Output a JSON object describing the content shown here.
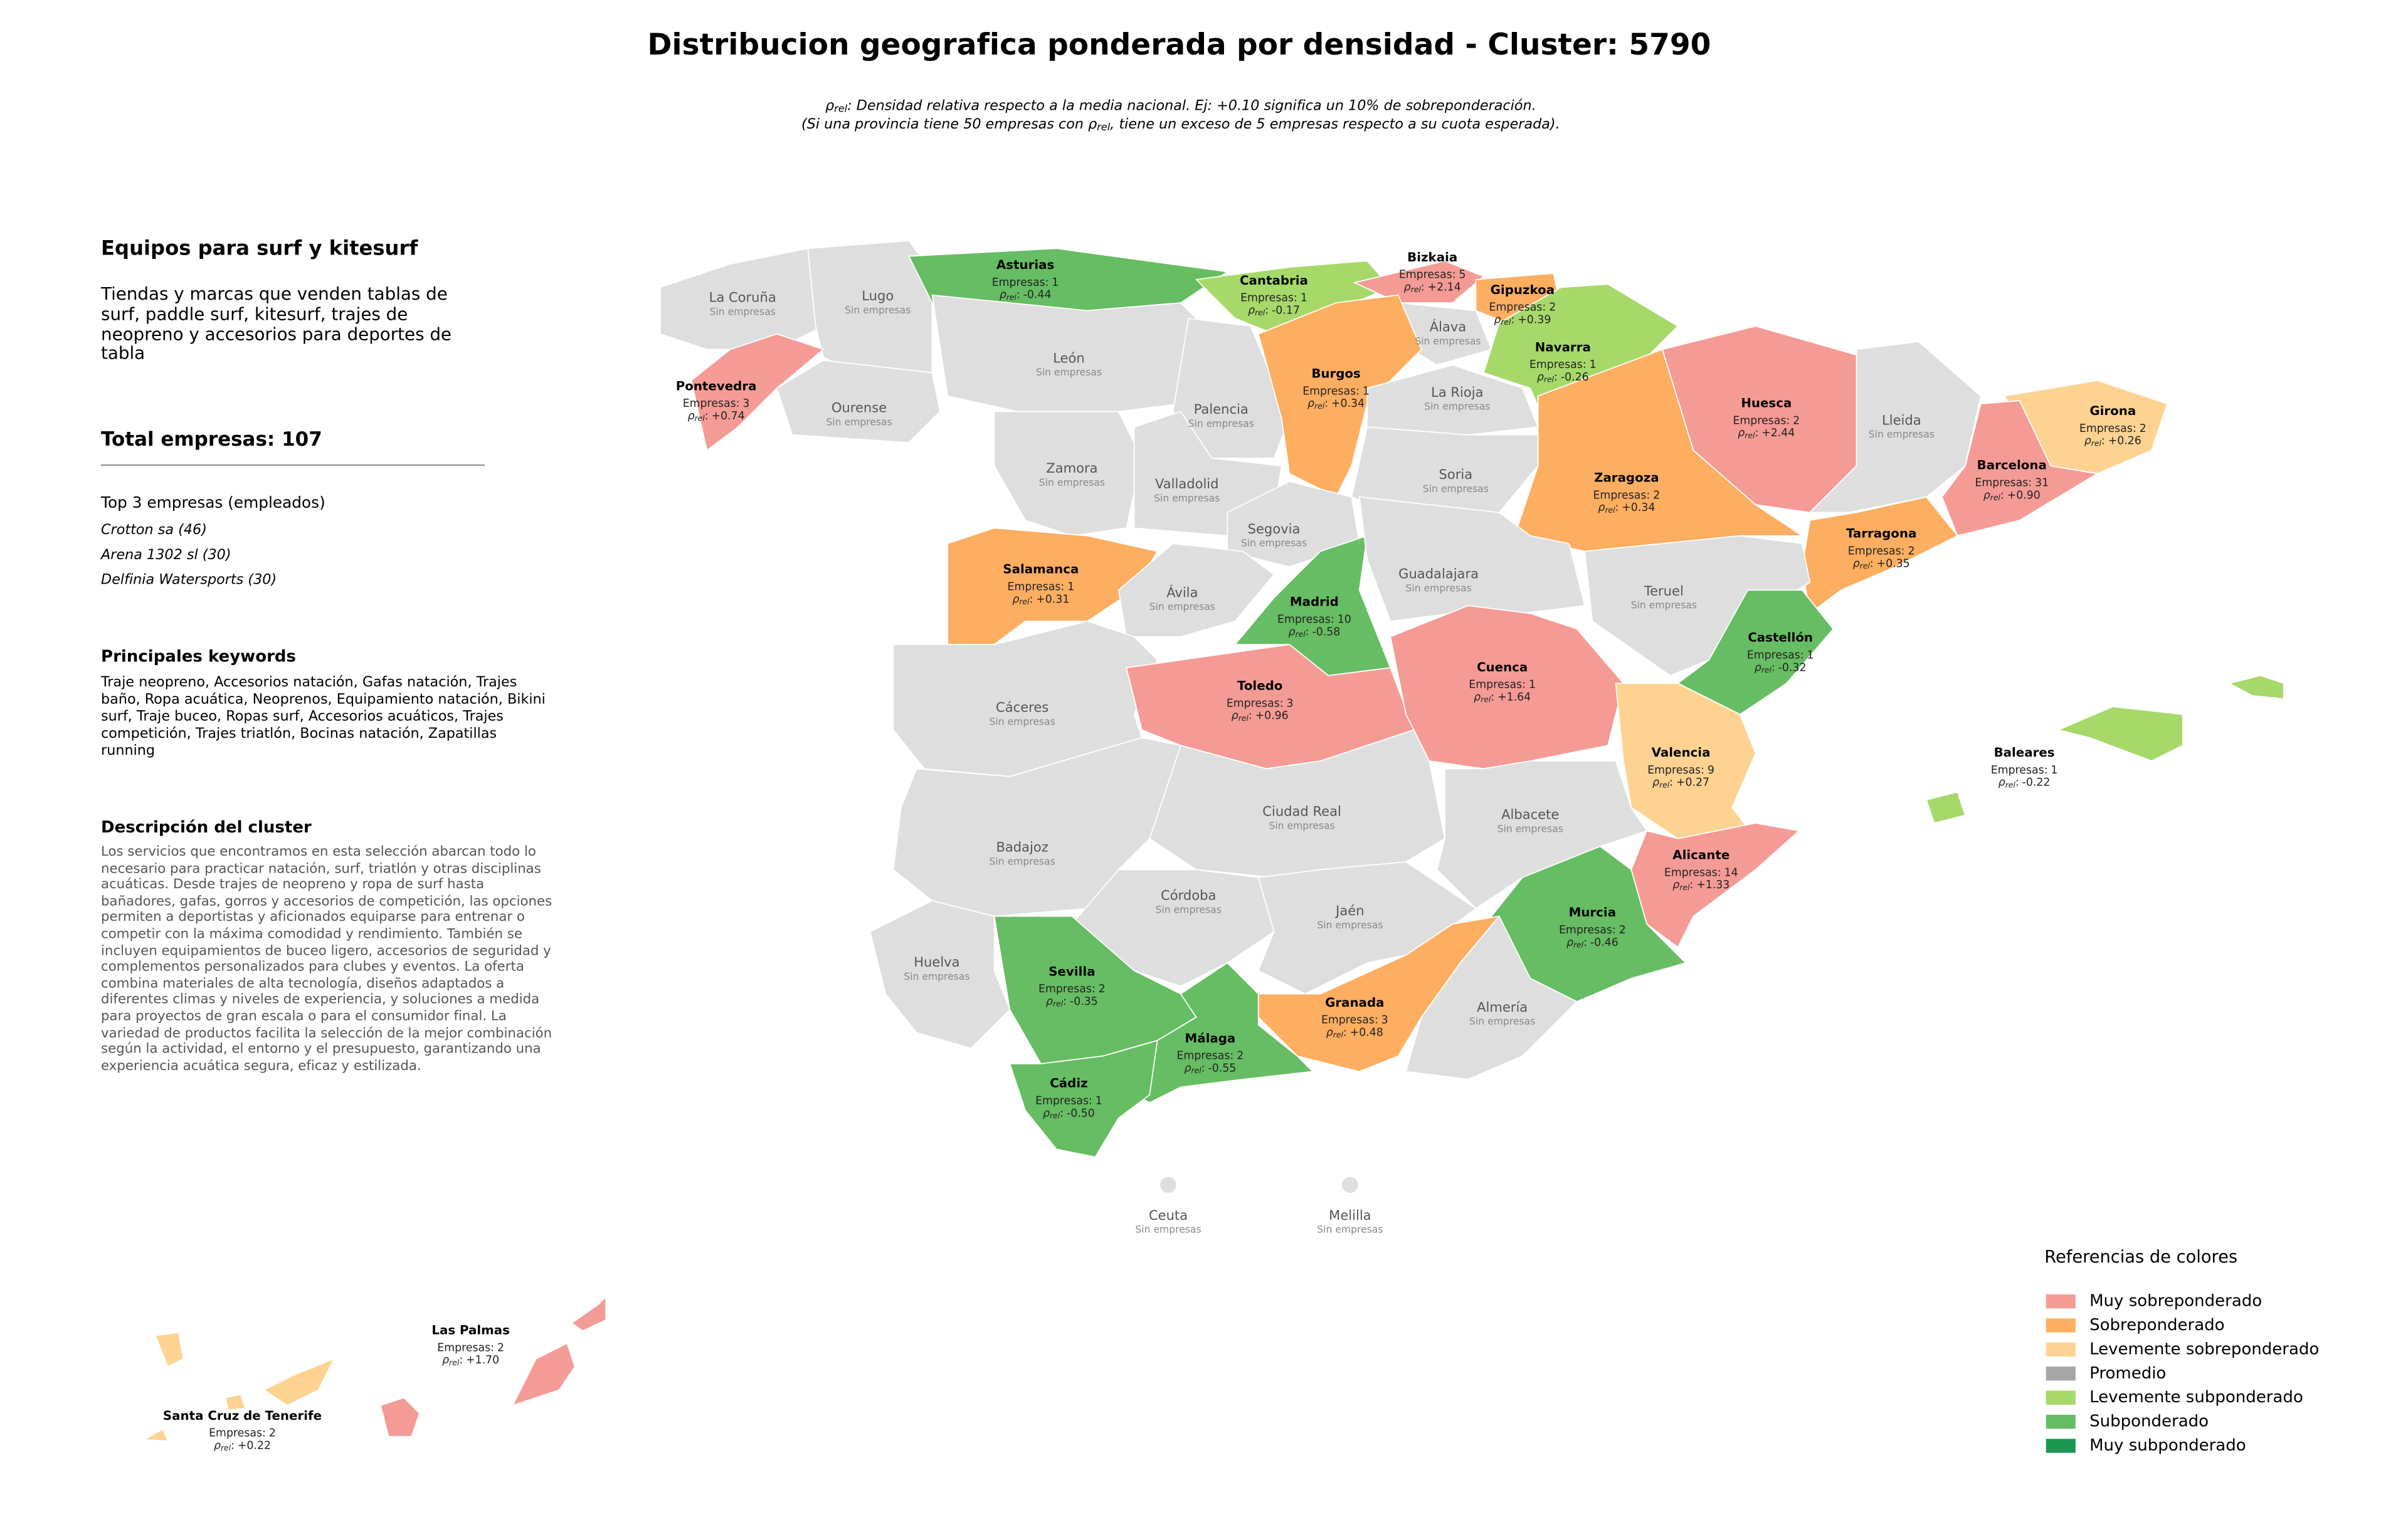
{
  "title": "Distribucion geografica ponderada por densidad - Cluster: 5790",
  "subtitle_lines": [
    [
      "ρ",
      "rel",
      ": Densidad relativa respecto a la media nacional. Ej: +0.10 significa un 10% de sobreponderación."
    ],
    [
      "(Si una provincia tiene 50 empresas con ",
      "ρ",
      "rel",
      ", tiene un exceso de 5 empresas respecto a su cuota esperada)."
    ]
  ],
  "panel": {
    "title": "Equipos para surf y kitesurf",
    "description": "Tiendas y marcas que venden tablas de surf, paddle surf, kitesurf, trajes de neopreno y accesorios para deportes de tabla",
    "total_label": "Total empresas:",
    "total": 107,
    "top_title": "Top 3 empresas (empleados)",
    "top_companies": [
      "Crotton sa (46)",
      "Arena 1302 sl (30)",
      "Delfinia Watersports (30)"
    ],
    "keywords_title": "Principales keywords",
    "keywords": "Traje neopreno, Accesorios natación, Gafas natación, Trajes baño, Ropa acuática, Neoprenos, Equipamiento natación, Bikini surf, Traje buceo, Ropas surf, Accesorios acuáticos, Trajes competición, Trajes triatlón, Bocinas natación, Zapatillas running",
    "cluster_title": "Descripción del cluster",
    "cluster_description": "Los servicios que encontramos en esta selección abarcan todo lo necesario para practicar natación, surf, triatlón y otras disciplinas acuáticas. Desde trajes de neopreno y ropa de surf hasta bañadores, gafas, gorros y accesorios de competición, las opciones permiten a deportistas y aficionados equiparse para entrenar o competir con la máxima comodidad y rendimiento. También se incluyen equipamientos de buceo ligero, accesorios de seguridad y complementos personalizados para clubes y eventos. La oferta combina materiales de alta tecnología, diseños adaptados a diferentes climas y niveles de experiencia, y soluciones a medida para proyectos de gran escala o para el consumidor final. La variedad de productos facilita la selección de la mejor combinación según la actividad, el entorno y el presupuesto, garantizando una experiencia acuática segura, eficaz y estilizada."
  },
  "labels": {
    "empresas": "Empresas:",
    "rho": "ρ",
    "rho_sub": "rel",
    "rho_sep": ":",
    "none": "Sin empresas"
  },
  "no_data_color": "#dedede",
  "legend": {
    "title": "Referencias de colores",
    "items": [
      {
        "name": "Muy sobreponderado",
        "color": "#f59b95"
      },
      {
        "name": "Sobreponderado",
        "color": "#fdae61"
      },
      {
        "name": "Levemente sobreponderado",
        "color": "#fed392"
      },
      {
        "name": "Promedio",
        "color": "#a6a6a6"
      },
      {
        "name": "Levemente subponderado",
        "color": "#a6d96a"
      },
      {
        "name": "Subponderado",
        "color": "#66bd63"
      },
      {
        "name": "Muy subponderado",
        "color": "#1a9850"
      }
    ]
  },
  "provinces": [
    {
      "name": "La Coruña"
    },
    {
      "name": "Lugo"
    },
    {
      "name": "Asturias",
      "empresas": 1,
      "rho": -0.44,
      "rho_label": "-0.44",
      "category": "Subponderado"
    },
    {
      "name": "Cantabria",
      "empresas": 1,
      "rho": -0.17,
      "rho_label": "-0.17",
      "category": "Levemente subponderado"
    },
    {
      "name": "Bizkaia",
      "empresas": 5,
      "rho": 2.14,
      "rho_label": "+2.14",
      "category": "Muy sobreponderado"
    },
    {
      "name": "Gipuzkoa",
      "empresas": 2,
      "rho": 0.39,
      "rho_label": "+0.39",
      "category": "Sobreponderado"
    },
    {
      "name": "Álava"
    },
    {
      "name": "Navarra",
      "empresas": 1,
      "rho": -0.26,
      "rho_label": "-0.26",
      "category": "Levemente subponderado"
    },
    {
      "name": "Pontevedra",
      "empresas": 3,
      "rho": 0.74,
      "rho_label": "+0.74",
      "category": "Muy sobreponderado"
    },
    {
      "name": "Ourense"
    },
    {
      "name": "León"
    },
    {
      "name": "Palencia"
    },
    {
      "name": "Burgos",
      "empresas": 1,
      "rho": 0.34,
      "rho_label": "+0.34",
      "category": "Sobreponderado"
    },
    {
      "name": "La Rioja"
    },
    {
      "name": "Huesca",
      "empresas": 2,
      "rho": 2.44,
      "rho_label": "+2.44",
      "category": "Muy sobreponderado"
    },
    {
      "name": "Lleida"
    },
    {
      "name": "Girona",
      "empresas": 2,
      "rho": 0.26,
      "rho_label": "+0.26",
      "category": "Levemente sobreponderado"
    },
    {
      "name": "Barcelona",
      "empresas": 31,
      "rho": 0.9,
      "rho_label": "+0.90",
      "category": "Muy sobreponderado"
    },
    {
      "name": "Zamora"
    },
    {
      "name": "Valladolid"
    },
    {
      "name": "Soria"
    },
    {
      "name": "Zaragoza",
      "empresas": 2,
      "rho": 0.34,
      "rho_label": "+0.34",
      "category": "Sobreponderado"
    },
    {
      "name": "Tarragona",
      "empresas": 2,
      "rho": 0.35,
      "rho_label": "+0.35",
      "category": "Sobreponderado"
    },
    {
      "name": "Segovia"
    },
    {
      "name": "Salamanca",
      "empresas": 1,
      "rho": 0.31,
      "rho_label": "+0.31",
      "category": "Sobreponderado"
    },
    {
      "name": "Ávila"
    },
    {
      "name": "Madrid",
      "empresas": 10,
      "rho": -0.58,
      "rho_label": "-0.58",
      "category": "Subponderado"
    },
    {
      "name": "Guadalajara"
    },
    {
      "name": "Teruel"
    },
    {
      "name": "Castellón",
      "empresas": 1,
      "rho": -0.32,
      "rho_label": "-0.32",
      "category": "Subponderado"
    },
    {
      "name": "Cáceres"
    },
    {
      "name": "Toledo",
      "empresas": 3,
      "rho": 0.96,
      "rho_label": "+0.96",
      "category": "Muy sobreponderado"
    },
    {
      "name": "Cuenca",
      "empresas": 1,
      "rho": 1.64,
      "rho_label": "+1.64",
      "category": "Muy sobreponderado"
    },
    {
      "name": "Valencia",
      "empresas": 9,
      "rho": 0.27,
      "rho_label": "+0.27",
      "category": "Levemente sobreponderado"
    },
    {
      "name": "Baleares",
      "empresas": 1,
      "rho": -0.22,
      "rho_label": "-0.22",
      "category": "Levemente subponderado"
    },
    {
      "name": "Ciudad Real"
    },
    {
      "name": "Albacete"
    },
    {
      "name": "Badajoz"
    },
    {
      "name": "Alicante",
      "empresas": 14,
      "rho": 1.33,
      "rho_label": "+1.33",
      "category": "Muy sobreponderado"
    },
    {
      "name": "Córdoba"
    },
    {
      "name": "Jaén"
    },
    {
      "name": "Murcia",
      "empresas": 2,
      "rho": -0.46,
      "rho_label": "-0.46",
      "category": "Subponderado"
    },
    {
      "name": "Huelva"
    },
    {
      "name": "Sevilla",
      "empresas": 2,
      "rho": -0.35,
      "rho_label": "-0.35",
      "category": "Subponderado"
    },
    {
      "name": "Granada",
      "empresas": 3,
      "rho": 0.48,
      "rho_label": "+0.48",
      "category": "Sobreponderado"
    },
    {
      "name": "Almería"
    },
    {
      "name": "Málaga",
      "empresas": 2,
      "rho": -0.55,
      "rho_label": "-0.55",
      "category": "Subponderado"
    },
    {
      "name": "Cádiz",
      "empresas": 1,
      "rho": -0.5,
      "rho_label": "-0.50",
      "category": "Subponderado"
    },
    {
      "name": "Ceuta"
    },
    {
      "name": "Melilla"
    },
    {
      "name": "Las Palmas",
      "empresas": 2,
      "rho": 1.7,
      "rho_label": "+1.70",
      "category": "Muy sobreponderado"
    },
    {
      "name": "Santa Cruz de Tenerife",
      "empresas": 2,
      "rho": 0.22,
      "rho_label": "+0.22",
      "category": "Levemente sobreponderado"
    }
  ]
}
